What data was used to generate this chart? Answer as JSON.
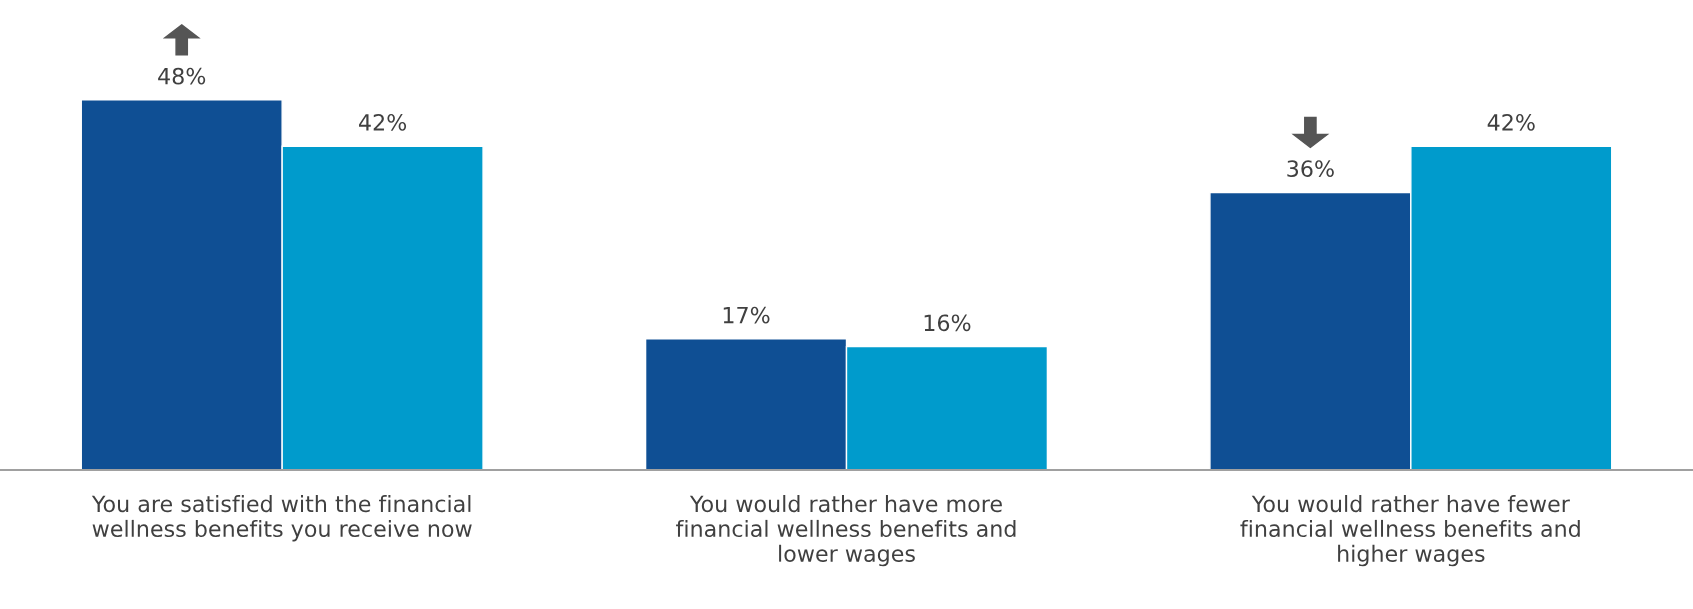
{
  "chart_data": {
    "type": "bar",
    "categories": [
      "You are satisfied with the financial\nwellness benefits you receive now",
      "You would rather have more\nfinancial wellness benefits and\nlower wages",
      "You would rather have fewer\nfinancial wellness benefits and\nhigher wages"
    ],
    "series": [
      {
        "color": "#0f4f94",
        "values": [
          48,
          17,
          36
        ],
        "value_labels": [
          "48%",
          "17%",
          "36%"
        ]
      },
      {
        "color": "#009bcc",
        "values": [
          42,
          16,
          42
        ],
        "value_labels": [
          "42%",
          "16%",
          "42%"
        ]
      }
    ],
    "grid": false,
    "legend": false
  }
}
